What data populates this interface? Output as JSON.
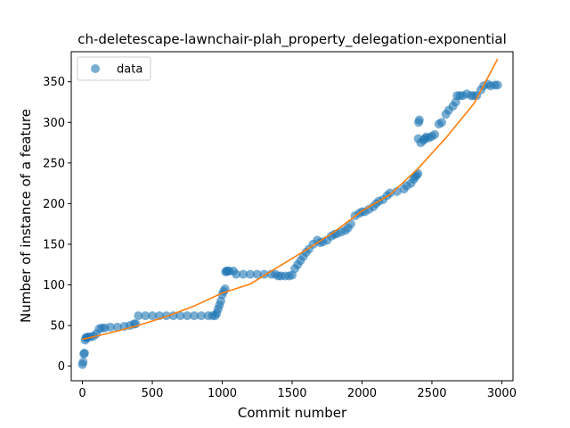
{
  "chart_data": {
    "type": "scatter",
    "title": "ch-deletescape-lawnchair-plah_property_delegation-exponential",
    "xlabel": "Commit number",
    "ylabel": "Number of instance of a feature",
    "xlim": [
      -80,
      3080
    ],
    "ylim": [
      -18,
      387
    ],
    "xticks": [
      0,
      500,
      1000,
      1500,
      2000,
      2500,
      3000
    ],
    "yticks": [
      0,
      50,
      100,
      150,
      200,
      250,
      300,
      350
    ],
    "grid": false,
    "legend": {
      "position": "top-left",
      "entries": [
        "data"
      ]
    },
    "colors": {
      "data": "#1f77b4",
      "fit": "#ff7f0e"
    },
    "series": [
      {
        "name": "data",
        "kind": "scatter",
        "x": [
          0,
          5,
          10,
          15,
          20,
          25,
          30,
          40,
          60,
          80,
          100,
          120,
          140,
          160,
          200,
          250,
          300,
          340,
          370,
          380,
          400,
          450,
          500,
          550,
          600,
          650,
          700,
          750,
          800,
          850,
          900,
          930,
          950,
          960,
          970,
          980,
          990,
          1000,
          1010,
          1020,
          1025,
          1030,
          1040,
          1050,
          1080,
          1100,
          1150,
          1200,
          1250,
          1300,
          1350,
          1380,
          1400,
          1420,
          1450,
          1480,
          1500,
          1520,
          1540,
          1560,
          1580,
          1600,
          1620,
          1650,
          1680,
          1700,
          1720,
          1750,
          1780,
          1800,
          1820,
          1850,
          1880,
          1900,
          1920,
          1950,
          1980,
          2000,
          2020,
          2050,
          2080,
          2100,
          2120,
          2150,
          2180,
          2200,
          2250,
          2300,
          2320,
          2350,
          2370,
          2380,
          2390,
          2400,
          2402,
          2405,
          2410,
          2420,
          2440,
          2450,
          2460,
          2480,
          2500,
          2520,
          2550,
          2570,
          2600,
          2620,
          2650,
          2670,
          2680,
          2700,
          2720,
          2750,
          2780,
          2800,
          2820,
          2850,
          2870,
          2900,
          2920,
          2950,
          2970
        ],
        "y": [
          2,
          5,
          15,
          16,
          32,
          35,
          35,
          36,
          36,
          37,
          40,
          46,
          47,
          47,
          48,
          48,
          49,
          50,
          52,
          52,
          62,
          62,
          62,
          62,
          62,
          62,
          62,
          62,
          62,
          62,
          62,
          62,
          62,
          65,
          70,
          75,
          80,
          88,
          92,
          95,
          116,
          117,
          117,
          117,
          117,
          113,
          113,
          113,
          113,
          113,
          113,
          113,
          111,
          111,
          111,
          111,
          112,
          120,
          125,
          130,
          135,
          140,
          144,
          150,
          155,
          152,
          153,
          155,
          160,
          162,
          163,
          165,
          167,
          170,
          175,
          185,
          188,
          190,
          190,
          193,
          196,
          200,
          203,
          205,
          210,
          213,
          215,
          218,
          222,
          225,
          230,
          233,
          235,
          237,
          280,
          300,
          303,
          275,
          278,
          280,
          282,
          281,
          283,
          285,
          298,
          300,
          310,
          315,
          320,
          325,
          333,
          333,
          333,
          335,
          333,
          333,
          333,
          340,
          345,
          347,
          345,
          346,
          346
        ]
      },
      {
        "name": "",
        "kind": "line",
        "x": [
          0,
          200,
          400,
          600,
          800,
          1000,
          1200,
          1400,
          1600,
          1800,
          2000,
          2200,
          2400,
          2600,
          2800,
          2970
        ],
        "y": [
          33,
          41,
          50,
          61,
          74,
          90,
          101,
          122,
          143,
          165,
          191,
          211,
          243,
          281,
          323,
          378
        ]
      }
    ]
  }
}
